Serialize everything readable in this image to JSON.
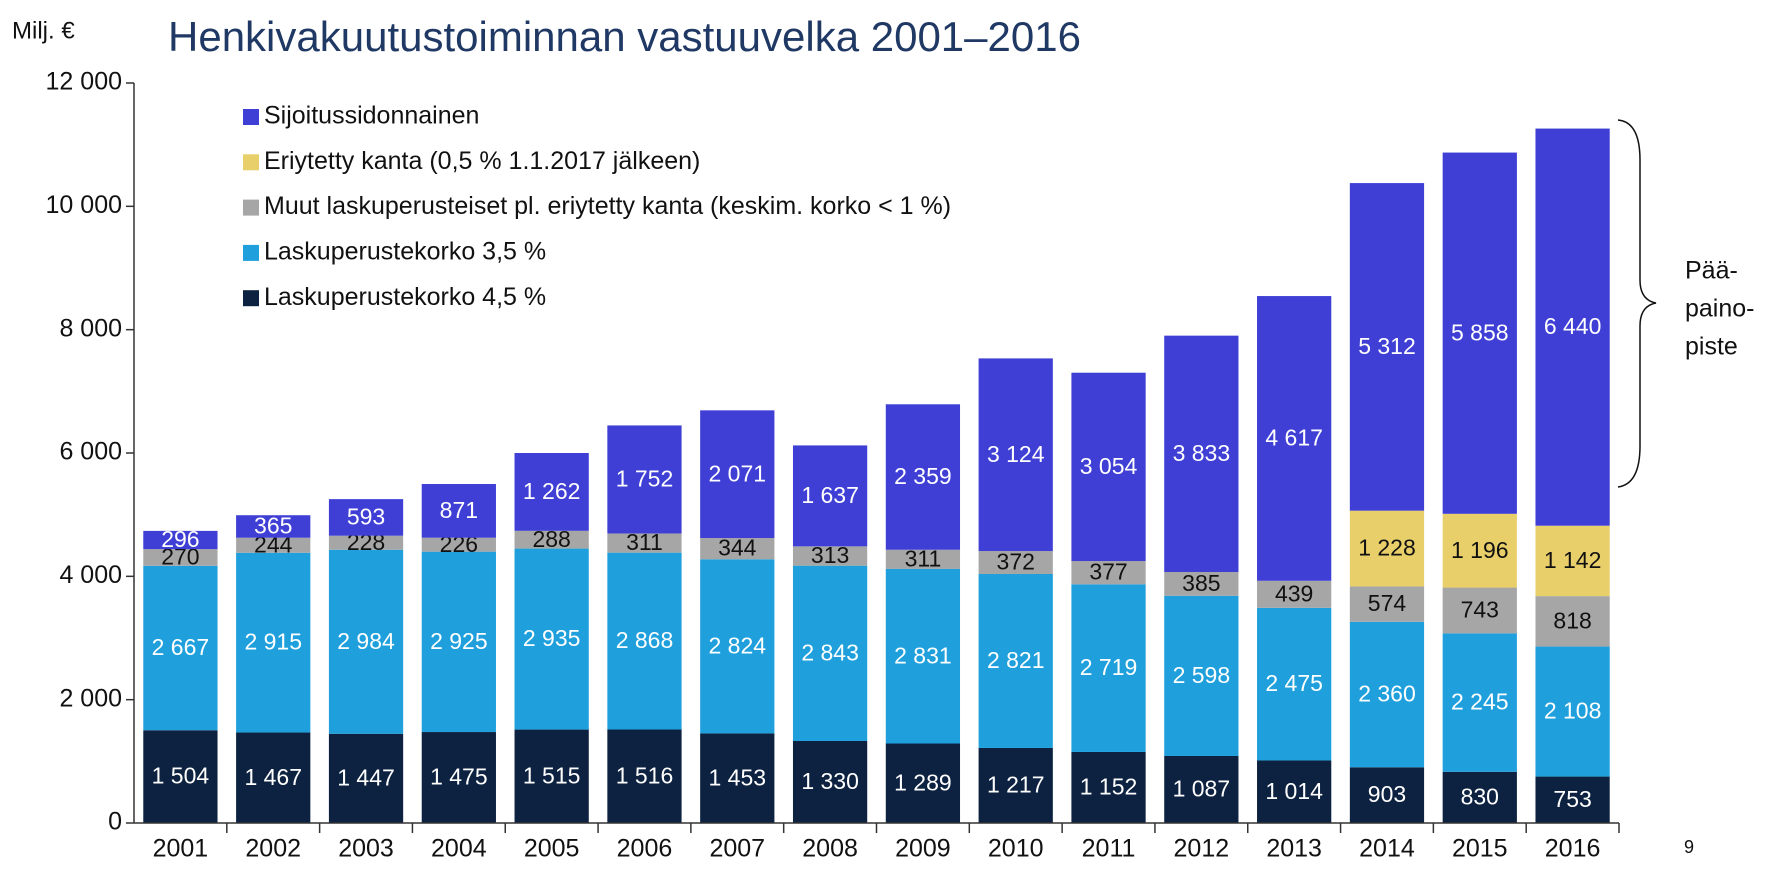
{
  "chart_data": {
    "type": "stacked_bar",
    "title": "Henkivakuutustoiminnan vastuuvelka 2001–2016",
    "y_axis_label": "Milj. €",
    "annotation": [
      "Pää-",
      "paino-",
      "piste"
    ],
    "page_number": "9",
    "categories": [
      "2001",
      "2002",
      "2003",
      "2004",
      "2005",
      "2006",
      "2007",
      "2008",
      "2009",
      "2010",
      "2011",
      "2012",
      "2013",
      "2014",
      "2015",
      "2016"
    ],
    "series": [
      {
        "name": "Laskuperustekorko 4,5 %",
        "color": "#0d2240",
        "label_color": "#ffffff",
        "values": [
          1504,
          1467,
          1447,
          1475,
          1515,
          1516,
          1453,
          1330,
          1289,
          1217,
          1152,
          1087,
          1014,
          903,
          830,
          753
        ],
        "value_labels": [
          "1 504",
          "1 467",
          "1 447",
          "1 475",
          "1 515",
          "1 516",
          "1 453",
          "1 330",
          "1 289",
          "1 217",
          "1 152",
          "1 087",
          "1 014",
          "903",
          "830",
          "753"
        ]
      },
      {
        "name": "Laskuperustekorko 3,5 %",
        "color": "#1fa0dc",
        "label_color": "#ffffff",
        "values": [
          2667,
          2915,
          2984,
          2925,
          2935,
          2868,
          2824,
          2843,
          2831,
          2821,
          2719,
          2598,
          2475,
          2360,
          2245,
          2108
        ],
        "value_labels": [
          "2 667",
          "2 915",
          "2 984",
          "2 925",
          "2 935",
          "2 868",
          "2 824",
          "2 843",
          "2 831",
          "2 821",
          "2 719",
          "2 598",
          "2 475",
          "2 360",
          "2 245",
          "2 108"
        ]
      },
      {
        "name": "Muut laskuperusteiset pl. eriytetty kanta (keskim. korko < 1 %)",
        "color": "#a6a6a6",
        "label_color": "#111111",
        "values": [
          270,
          244,
          228,
          226,
          288,
          311,
          344,
          313,
          311,
          372,
          377,
          385,
          439,
          574,
          743,
          818
        ]
      },
      {
        "name": "Eriytetty kanta (0,5 % 1.1.2017 jälkeen)",
        "color": "#e8cf6a",
        "label_color": "#111111",
        "values": [
          null,
          null,
          null,
          null,
          null,
          null,
          null,
          null,
          null,
          null,
          null,
          null,
          null,
          1228,
          1196,
          1142
        ],
        "value_labels": [
          null,
          null,
          null,
          null,
          null,
          null,
          null,
          null,
          null,
          null,
          null,
          null,
          null,
          "1 228",
          "1 196",
          "1 142"
        ]
      },
      {
        "name": "Sijoitussidonnainen",
        "color": "#3f3fd6",
        "label_color": "#ffffff",
        "values": [
          296,
          365,
          593,
          871,
          1262,
          1752,
          2071,
          1637,
          2359,
          3124,
          3054,
          3833,
          4617,
          5312,
          5858,
          6440
        ],
        "value_labels": [
          "296",
          "365",
          "593",
          "871",
          "1 262",
          "1 752",
          "2 071",
          "1 637",
          "2 359",
          "3 124",
          "3 054",
          "3 833",
          "4 617",
          "5 312",
          "5 858",
          "6 440"
        ]
      }
    ],
    "ylim": [
      0,
      12000
    ],
    "yticks": [
      0,
      {
        "value": 2000,
        "label": "2 000"
      },
      {
        "value": 4000,
        "label": "4 000"
      },
      {
        "value": 6000,
        "label": "6 000"
      },
      {
        "value": 8000,
        "label": "8 000"
      },
      {
        "value": 10000,
        "label": "10 000"
      },
      {
        "value": 12000,
        "label": "12 000"
      }
    ],
    "legend": "upper left"
  }
}
